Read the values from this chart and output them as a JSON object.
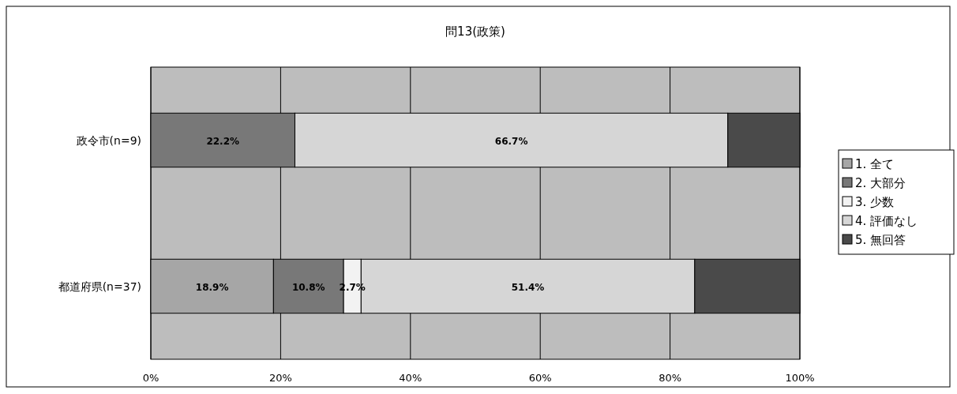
{
  "chart_data": {
    "type": "bar",
    "orientation": "horizontal",
    "stacked": true,
    "title": "問13(政策)",
    "categories": [
      "政令市(n=9)",
      "都道府県(n=37)"
    ],
    "series": [
      {
        "name": "1. 全て",
        "color": "#a6a6a6",
        "values": [
          0,
          18.9
        ],
        "value_labels": [
          null,
          "18.9%"
        ]
      },
      {
        "name": "2. 大部分",
        "color": "#787878",
        "values": [
          22.2,
          10.8
        ],
        "value_labels": [
          "22.2%",
          "10.8%"
        ]
      },
      {
        "name": "3. 少数",
        "color": "#f2f2f2",
        "values": [
          0,
          2.7
        ],
        "value_labels": [
          null,
          "2.7%"
        ]
      },
      {
        "name": "4. 評価なし",
        "color": "#d6d6d6",
        "values": [
          66.7,
          51.4
        ],
        "value_labels": [
          "66.7%",
          "51.4%"
        ]
      },
      {
        "name": "5. 無回答",
        "color": "#4a4a4a",
        "values": [
          11.1,
          16.2
        ],
        "value_labels": [
          null,
          null
        ]
      }
    ],
    "xlim": [
      0,
      100
    ],
    "xticks": [
      {
        "value": 0,
        "label": "0%"
      },
      {
        "value": 20,
        "label": "20%"
      },
      {
        "value": 40,
        "label": "40%"
      },
      {
        "value": 60,
        "label": "60%"
      },
      {
        "value": 80,
        "label": "80%"
      },
      {
        "value": 100,
        "label": "100%"
      }
    ],
    "grid": "x",
    "legend": "right"
  }
}
